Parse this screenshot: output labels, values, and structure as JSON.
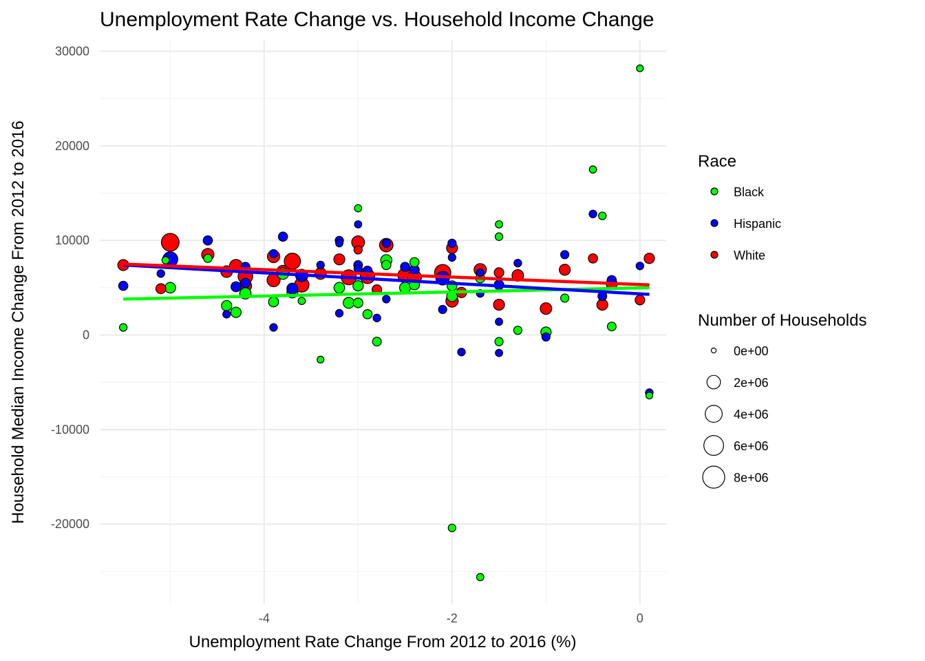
{
  "chart_data": {
    "type": "scatter",
    "title": "Unemployment Rate Change vs. Household Income Change",
    "xlabel": "Unemployment Rate Change From 2012 to 2016 (%)",
    "ylabel": "Household Median Income Change From 2012 to 2016",
    "xlim": [
      -5.75,
      0.28
    ],
    "ylim": [
      -28500,
      31200
    ],
    "x_ticks": [
      -4,
      -2,
      0
    ],
    "x_tick_labels": [
      "-4",
      "-2",
      "0"
    ],
    "y_ticks": [
      -20000,
      -10000,
      0,
      10000,
      20000,
      30000
    ],
    "y_tick_labels": [
      "-20000",
      "-10000",
      "0",
      "10000",
      "20000",
      "30000"
    ],
    "grid": true,
    "legend_position": "right",
    "color_legend": {
      "title": "Race",
      "entries": [
        {
          "label": "Black",
          "color": "#00ff00"
        },
        {
          "label": "Hispanic",
          "color": "#0000ff"
        },
        {
          "label": "White",
          "color": "#ff0000"
        }
      ]
    },
    "size_legend": {
      "title": "Number of Households",
      "entries": [
        {
          "label": "0e+00",
          "value": 0
        },
        {
          "label": "2e+06",
          "value": 2000000
        },
        {
          "label": "4e+06",
          "value": 4000000
        },
        {
          "label": "6e+06",
          "value": 6000000
        },
        {
          "label": "8e+06",
          "value": 8000000
        }
      ]
    },
    "series": [
      {
        "name": "Black",
        "color": "#00ff00",
        "trend": [
          [
            -5.5,
            3800
          ],
          [
            0.1,
            5000
          ]
        ],
        "points": [
          [
            -5.5,
            800,
            200000
          ],
          [
            -5.05,
            7900,
            150000
          ],
          [
            -5.0,
            5000,
            900000
          ],
          [
            -4.6,
            8100,
            300000
          ],
          [
            -4.4,
            3100,
            800000
          ],
          [
            -4.3,
            2400,
            800000
          ],
          [
            -4.2,
            4400,
            1100000
          ],
          [
            -3.9,
            3500,
            700000
          ],
          [
            -3.8,
            6500,
            1200000
          ],
          [
            -3.7,
            4500,
            1000000
          ],
          [
            -3.6,
            3600,
            150000
          ],
          [
            -3.4,
            -2600,
            100000
          ],
          [
            -3.2,
            5000,
            900000
          ],
          [
            -3.1,
            3400,
            1000000
          ],
          [
            -3.0,
            13400,
            150000
          ],
          [
            -3.0,
            5200,
            800000
          ],
          [
            -3.0,
            3400,
            600000
          ],
          [
            -2.9,
            2200,
            500000
          ],
          [
            -2.8,
            -700,
            400000
          ],
          [
            -2.7,
            7900,
            1100000
          ],
          [
            -2.7,
            7400,
            500000
          ],
          [
            -2.5,
            5000,
            1000000
          ],
          [
            -2.4,
            7700,
            500000
          ],
          [
            -2.4,
            5300,
            700000
          ],
          [
            -2.0,
            5200,
            700000
          ],
          [
            -2.0,
            4100,
            900000
          ],
          [
            -2.0,
            -20400,
            200000
          ],
          [
            -1.7,
            6000,
            500000
          ],
          [
            -1.7,
            -25600,
            150000
          ],
          [
            -1.5,
            11700,
            150000
          ],
          [
            -1.5,
            10400,
            200000
          ],
          [
            -1.5,
            -700,
            300000
          ],
          [
            -1.3,
            500,
            300000
          ],
          [
            -1.0,
            300,
            800000
          ],
          [
            -0.8,
            3900,
            300000
          ],
          [
            -0.5,
            17500,
            150000
          ],
          [
            -0.4,
            12600,
            200000
          ],
          [
            -0.3,
            900,
            400000
          ],
          [
            0.0,
            28200,
            100000
          ],
          [
            0.1,
            -6400,
            100000
          ]
        ]
      },
      {
        "name": "Hispanic",
        "color": "#0000ff",
        "trend": [
          [
            -5.5,
            7400
          ],
          [
            0.1,
            4300
          ]
        ],
        "points": [
          [
            -5.5,
            5200,
            500000
          ],
          [
            -5.1,
            6500,
            200000
          ],
          [
            -5.0,
            8000,
            2800000
          ],
          [
            -4.6,
            10000,
            500000
          ],
          [
            -4.4,
            2200,
            200000
          ],
          [
            -4.3,
            5100,
            700000
          ],
          [
            -4.2,
            7200,
            500000
          ],
          [
            -4.2,
            5500,
            600000
          ],
          [
            -3.9,
            8600,
            300000
          ],
          [
            -3.9,
            800,
            200000
          ],
          [
            -3.8,
            10400,
            500000
          ],
          [
            -3.7,
            4900,
            1000000
          ],
          [
            -3.6,
            6300,
            1500000
          ],
          [
            -3.4,
            7400,
            200000
          ],
          [
            -3.2,
            10000,
            300000
          ],
          [
            -3.2,
            9700,
            150000
          ],
          [
            -3.2,
            2300,
            200000
          ],
          [
            -3.0,
            11700,
            150000
          ],
          [
            -3.0,
            7400,
            400000
          ],
          [
            -3.0,
            7000,
            300000
          ],
          [
            -2.9,
            6800,
            500000
          ],
          [
            -2.8,
            1800,
            200000
          ],
          [
            -2.7,
            9700,
            300000
          ],
          [
            -2.7,
            3800,
            200000
          ],
          [
            -2.5,
            7200,
            500000
          ],
          [
            -2.4,
            6900,
            600000
          ],
          [
            -2.1,
            6000,
            2000000
          ],
          [
            -2.1,
            2700,
            300000
          ],
          [
            -2.0,
            9700,
            300000
          ],
          [
            -2.0,
            8200,
            200000
          ],
          [
            -1.9,
            -1800,
            200000
          ],
          [
            -1.7,
            6600,
            200000
          ],
          [
            -1.7,
            4400,
            200000
          ],
          [
            -1.5,
            5300,
            600000
          ],
          [
            -1.5,
            1400,
            150000
          ],
          [
            -1.5,
            -1900,
            150000
          ],
          [
            -1.3,
            7600,
            200000
          ],
          [
            -1.0,
            -200,
            300000
          ],
          [
            -0.8,
            8500,
            300000
          ],
          [
            -0.5,
            12800,
            200000
          ],
          [
            -0.4,
            4100,
            400000
          ],
          [
            -0.3,
            5800,
            500000
          ],
          [
            0.0,
            7300,
            200000
          ],
          [
            0.1,
            -6100,
            200000
          ]
        ]
      },
      {
        "name": "White",
        "color": "#ff0000",
        "trend": [
          [
            -5.5,
            7500
          ],
          [
            0.1,
            5300
          ]
        ],
        "points": [
          [
            -5.5,
            7400,
            1000000
          ],
          [
            -5.1,
            4900,
            700000
          ],
          [
            -5.0,
            9800,
            4500000
          ],
          [
            -4.6,
            8500,
            1500000
          ],
          [
            -4.4,
            6700,
            1200000
          ],
          [
            -4.3,
            7300,
            1800000
          ],
          [
            -4.2,
            6200,
            2600000
          ],
          [
            -4.2,
            5200,
            1500000
          ],
          [
            -3.9,
            8300,
            1500000
          ],
          [
            -3.9,
            5800,
            1800000
          ],
          [
            -3.8,
            6700,
            1600000
          ],
          [
            -3.7,
            7800,
            3500000
          ],
          [
            -3.6,
            5300,
            2500000
          ],
          [
            -3.4,
            6500,
            1200000
          ],
          [
            -3.2,
            8000,
            1000000
          ],
          [
            -3.1,
            6100,
            2800000
          ],
          [
            -3.0,
            9800,
            1700000
          ],
          [
            -3.0,
            9000,
            300000
          ],
          [
            -2.9,
            6200,
            2500000
          ],
          [
            -2.8,
            4800,
            600000
          ],
          [
            -2.7,
            9500,
            2000000
          ],
          [
            -2.5,
            6300,
            2500000
          ],
          [
            -2.4,
            6100,
            2200000
          ],
          [
            -2.1,
            6600,
            3500000
          ],
          [
            -2.0,
            9200,
            1000000
          ],
          [
            -2.0,
            3600,
            1500000
          ],
          [
            -1.9,
            4500,
            800000
          ],
          [
            -1.7,
            6900,
            1500000
          ],
          [
            -1.5,
            6600,
            600000
          ],
          [
            -1.5,
            3200,
            1000000
          ],
          [
            -1.3,
            6300,
            1200000
          ],
          [
            -1.0,
            2800,
            1200000
          ],
          [
            -0.8,
            6900,
            1000000
          ],
          [
            -0.5,
            8100,
            500000
          ],
          [
            -0.4,
            3200,
            1000000
          ],
          [
            -0.3,
            5400,
            1000000
          ],
          [
            0.0,
            3700,
            600000
          ],
          [
            0.1,
            8100,
            800000
          ]
        ]
      }
    ]
  }
}
